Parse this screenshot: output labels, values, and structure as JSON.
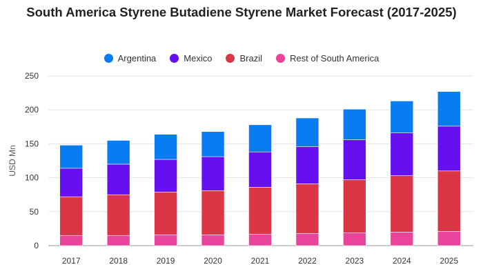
{
  "chart_data": {
    "type": "bar",
    "stacked": true,
    "title": "South America Styrene Butadiene Styrene Market Forecast (2017-2025)",
    "xlabel": "",
    "ylabel": "USD Mn",
    "ylim": [
      0,
      250
    ],
    "yticks": [
      0,
      50,
      100,
      150,
      200,
      250
    ],
    "grid": true,
    "legend_position": "top",
    "categories": [
      "2017",
      "2018",
      "2019",
      "2020",
      "2021",
      "2022",
      "2023",
      "2024",
      "2025"
    ],
    "series": [
      {
        "name": "Rest of South America",
        "color": "#e8449a",
        "values": [
          15,
          15,
          16,
          16,
          17,
          18,
          19,
          20,
          21
        ]
      },
      {
        "name": "Brazil",
        "color": "#dc3545",
        "values": [
          57,
          60,
          63,
          65,
          69,
          73,
          78,
          83,
          89
        ]
      },
      {
        "name": "Mexico",
        "color": "#6610f2",
        "values": [
          42,
          45,
          48,
          50,
          52,
          55,
          59,
          63,
          66
        ]
      },
      {
        "name": "Argentina",
        "color": "#0a7cf2",
        "values": [
          34,
          35,
          37,
          37,
          40,
          42,
          45,
          47,
          51
        ]
      }
    ],
    "legend_order": [
      "Argentina",
      "Mexico",
      "Brazil",
      "Rest of South America"
    ]
  }
}
